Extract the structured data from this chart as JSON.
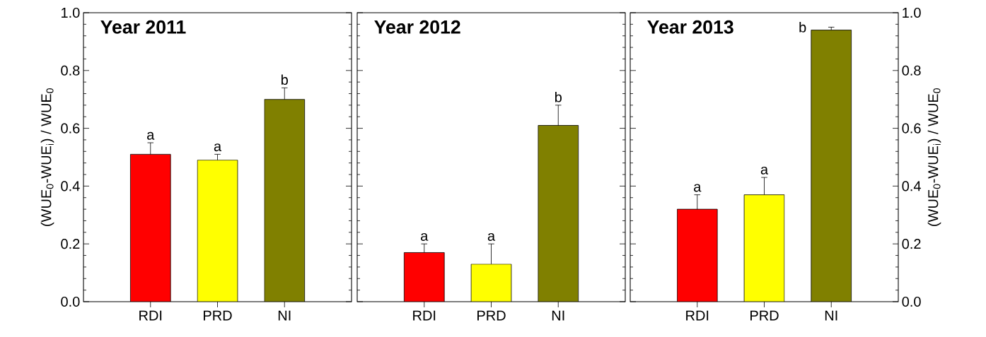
{
  "chart_data": [
    {
      "type": "bar",
      "title": "Year 2011",
      "ylabel": "(WUE$_{0}$-WUE$_{i}$) / WUE$_{0}$",
      "categories": [
        "RDI",
        "PRD",
        "NI"
      ],
      "values": [
        0.51,
        0.49,
        0.7
      ],
      "colors": [
        "#ff0000",
        "#ffff00",
        "#808000"
      ],
      "errors": [
        [
          0.51,
          0.55
        ],
        [
          0.49,
          0.51
        ],
        [
          0.7,
          0.74
        ]
      ],
      "ylim": [
        0,
        1
      ],
      "yticks": [
        {
          "value": 0,
          "label": "0.0"
        },
        {
          "value": 0.2,
          "label": "0.2"
        },
        {
          "value": 0.4,
          "label": "0.4"
        },
        {
          "value": 0.6,
          "label": "0.6"
        },
        {
          "value": 0.8,
          "label": "0.8"
        },
        {
          "value": 1,
          "label": "1.0"
        }
      ],
      "annotations": [
        {
          "text": "a",
          "x": "RDI",
          "y": 0.55
        },
        {
          "text": "a",
          "x": "PRD",
          "y": 0.51
        },
        {
          "text": "b",
          "x": "NI",
          "y": 0.74
        }
      ]
    },
    {
      "type": "bar",
      "title": "Year 2012",
      "categories": [
        "RDI",
        "PRD",
        "NI"
      ],
      "values": [
        0.17,
        0.13,
        0.61
      ],
      "colors": [
        "#ff0000",
        "#ffff00",
        "#808000"
      ],
      "errors": [
        [
          0.17,
          0.2
        ],
        [
          0.13,
          0.2
        ],
        [
          0.61,
          0.68
        ]
      ],
      "ylim": [
        0,
        1
      ],
      "yticks": [
        {
          "value": 0,
          "label": null
        },
        {
          "value": 0.2,
          "label": null
        },
        {
          "value": 0.4,
          "label": null
        },
        {
          "value": 0.6,
          "label": null
        },
        {
          "value": 0.8,
          "label": null
        },
        {
          "value": 1,
          "label": null
        }
      ],
      "tick_labels": "x",
      "annotations": [
        {
          "text": "a",
          "x": "RDI",
          "y": 0.2
        },
        {
          "text": "a",
          "x": "PRD",
          "y": 0.2
        },
        {
          "text": "b",
          "x": "NI",
          "y": 0.68
        }
      ]
    },
    {
      "type": "bar",
      "title": "Year 2013",
      "ylabel": "(WUE$_{0}$-WUE$_{i}$) / WUE$_{0}$",
      "categories": [
        "RDI",
        "PRD",
        "NI"
      ],
      "values": [
        0.32,
        0.37,
        0.94
      ],
      "colors": [
        "#ff0000",
        "#ffff00",
        "#808000"
      ],
      "errors": [
        [
          0.32,
          0.37
        ],
        [
          0.37,
          0.43
        ],
        [
          0.94,
          0.95
        ]
      ],
      "ylim": [
        0,
        1
      ],
      "yticks": [
        {
          "value": 0,
          "label": "0.0"
        },
        {
          "value": 0.2,
          "label": "0.2"
        },
        {
          "value": 0.4,
          "label": "0.4"
        },
        {
          "value": 0.6,
          "label": "0.6"
        },
        {
          "value": 0.8,
          "label": "0.8"
        },
        {
          "value": 1,
          "label": "1.0"
        }
      ],
      "annotations": [
        {
          "text": "a",
          "x": "RDI",
          "y": 0.37
        },
        {
          "text": "a",
          "x": "PRD",
          "y": 0.43
        },
        {
          "text": "b",
          "x": "NI",
          "y": 0.95
        }
      ]
    }
  ]
}
